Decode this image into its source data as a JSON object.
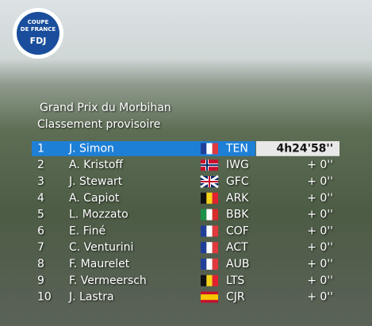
{
  "logo": {
    "line1": "COUPE",
    "line2": "DE FRANCE",
    "line3": "FDJ"
  },
  "header": {
    "title": "Grand Prix du Morbihan",
    "subtitle": "Classement provisoire"
  },
  "table": {
    "rows": [
      [
        "1",
        "J. Simon",
        "TEN",
        "4h24'58''"
      ],
      [
        "2",
        "A. Kristoff",
        "IWG",
        "+ 0''"
      ],
      [
        "3",
        "J. Stewart",
        "GFC",
        "+ 0''"
      ],
      [
        "4",
        "A. Capiot",
        "ARK",
        "+ 0''"
      ],
      [
        "5",
        "L. Mozzato",
        "BBK",
        "+ 0''"
      ],
      [
        "6",
        "E. Finé",
        "COF",
        "+ 0''"
      ],
      [
        "7",
        "C. Venturini",
        "ACT",
        "+ 0''"
      ],
      [
        "8",
        "F. Maurelet",
        "AUB",
        "+ 0''"
      ],
      [
        "9",
        "F. Vermeersch",
        "LTS",
        "+ 0''"
      ],
      [
        "10",
        "J. Lastra",
        "CJR",
        "+ 0''"
      ]
    ]
  }
}
